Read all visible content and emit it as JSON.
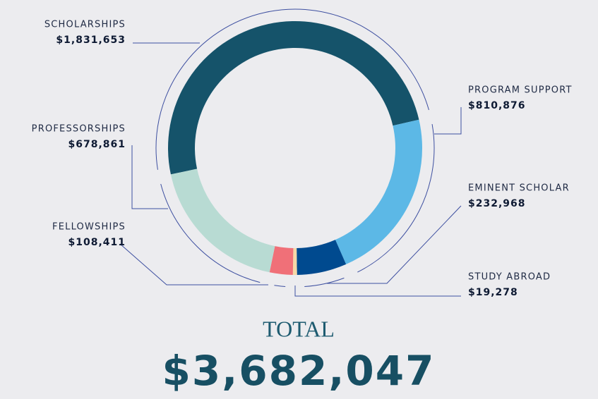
{
  "chart_data": {
    "type": "donut",
    "categories": [
      "SCHOLARSHIPS",
      "PROGRAM SUPPORT",
      "EMINENT SCHOLAR",
      "STUDY ABROAD",
      "FELLOWSHIPS",
      "PROFESSORSHIPS"
    ],
    "values": [
      1831653,
      810876,
      232968,
      19278,
      108411,
      678861
    ],
    "value_labels": [
      "$1,831,653",
      "$810,876",
      "$232,968",
      "$19,278",
      "$108,411",
      "$678,861"
    ],
    "colors": [
      "#15536a",
      "#5cb8e6",
      "#004a8f",
      "#f5d9a8",
      "#f07078",
      "#b8dbd3"
    ],
    "total": {
      "name": "TOTAL",
      "value": 3682047,
      "label": "$3,682,047"
    }
  }
}
